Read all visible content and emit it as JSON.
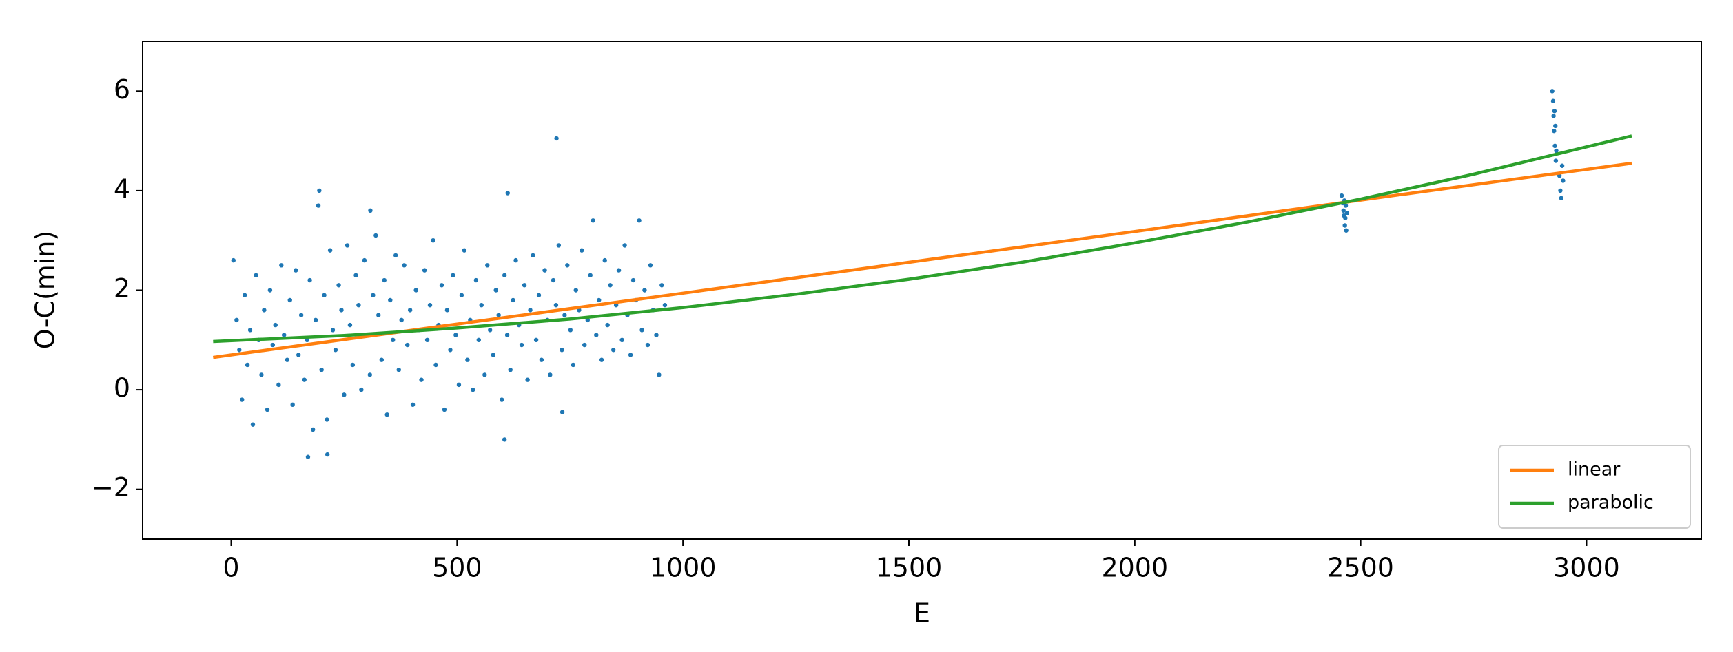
{
  "chart_data": {
    "type": "scatter",
    "xlabel": "E",
    "ylabel": "O-C(min)",
    "xlim": [
      -196,
      3254
    ],
    "ylim": [
      -3,
      7
    ],
    "xticks": [
      0,
      500,
      1000,
      1500,
      2000,
      2500,
      3000
    ],
    "yticks": [
      {
        "value": -2,
        "label": "−2"
      },
      0,
      2,
      4,
      6
    ],
    "grid": false,
    "legend": "lower right",
    "series": [
      {
        "type": "scatter",
        "color": "#1f77b4",
        "x": [
          5,
          12,
          18,
          24,
          30,
          36,
          42,
          48,
          55,
          61,
          67,
          73,
          80,
          86,
          92,
          98,
          105,
          111,
          117,
          124,
          130,
          136,
          143,
          149,
          155,
          162,
          168,
          174,
          181,
          187,
          193,
          200,
          206,
          212,
          219,
          225,
          231,
          238,
          244,
          250,
          257,
          263,
          269,
          276,
          282,
          288,
          295,
          301,
          307,
          314,
          320,
          326,
          333,
          339,
          345,
          352,
          358,
          364,
          371,
          377,
          383,
          390,
          396,
          402,
          409,
          415,
          421,
          428,
          434,
          440,
          447,
          453,
          459,
          466,
          472,
          478,
          485,
          491,
          497,
          504,
          510,
          516,
          523,
          529,
          535,
          542,
          548,
          554,
          561,
          567,
          573,
          580,
          586,
          592,
          599,
          605,
          611,
          618,
          624,
          630,
          637,
          643,
          649,
          656,
          662,
          668,
          675,
          681,
          687,
          694,
          700,
          706,
          713,
          719,
          725,
          732,
          738,
          744,
          751,
          757,
          763,
          770,
          776,
          782,
          789,
          795,
          801,
          808,
          814,
          820,
          827,
          833,
          839,
          846,
          852,
          858,
          865,
          871,
          877,
          884,
          890,
          896,
          903,
          909,
          915,
          922,
          928,
          934,
          941,
          947,
          953,
          960,
          170,
          195,
          213,
          308,
          605,
          720,
          612,
          733,
          2458,
          2460,
          2462,
          2463,
          2464,
          2465,
          2466,
          2467,
          2468,
          2470,
          2924,
          2926,
          2927,
          2928,
          2929,
          2930,
          2931,
          2932,
          2933,
          2940,
          2942,
          2944,
          2946,
          2948
        ],
        "values": [
          2.6,
          1.4,
          0.8,
          -0.2,
          1.9,
          0.5,
          1.2,
          -0.7,
          2.3,
          1.0,
          0.3,
          1.6,
          -0.4,
          2.0,
          0.9,
          1.3,
          0.1,
          2.5,
          1.1,
          0.6,
          1.8,
          -0.3,
          2.4,
          0.7,
          1.5,
          0.2,
          1.0,
          2.2,
          -0.8,
          1.4,
          3.7,
          0.4,
          1.9,
          -0.6,
          2.8,
          1.2,
          0.8,
          2.1,
          1.6,
          -0.1,
          2.9,
          1.3,
          0.5,
          2.3,
          1.7,
          0.0,
          2.6,
          1.1,
          0.3,
          1.9,
          3.1,
          1.5,
          0.6,
          2.2,
          -0.5,
          1.8,
          1.0,
          2.7,
          0.4,
          1.4,
          2.5,
          0.9,
          1.6,
          -0.3,
          2.0,
          1.2,
          0.2,
          2.4,
          1.0,
          1.7,
          3.0,
          0.5,
          1.3,
          2.1,
          -0.4,
          1.6,
          0.8,
          2.3,
          1.1,
          0.1,
          1.9,
          2.8,
          0.6,
          1.4,
          0.0,
          2.2,
          1.0,
          1.7,
          0.3,
          2.5,
          1.2,
          0.7,
          2.0,
          1.5,
          -0.2,
          2.3,
          1.1,
          0.4,
          1.8,
          2.6,
          1.3,
          0.9,
          2.1,
          0.2,
          1.6,
          2.7,
          1.0,
          1.9,
          0.6,
          2.4,
          1.4,
          0.3,
          2.2,
          1.7,
          2.9,
          0.8,
          1.5,
          2.5,
          1.2,
          0.5,
          2.0,
          1.6,
          2.8,
          0.9,
          1.4,
          2.3,
          3.4,
          1.1,
          1.8,
          0.6,
          2.6,
          1.3,
          2.1,
          0.8,
          1.7,
          2.4,
          1.0,
          2.9,
          1.5,
          0.7,
          2.2,
          1.8,
          3.4,
          1.2,
          2.0,
          0.9,
          2.5,
          1.6,
          1.1,
          0.3,
          2.1,
          1.7,
          -1.35,
          4.0,
          -1.3,
          3.6,
          -1.0,
          5.05,
          3.95,
          -0.45,
          3.9,
          3.75,
          3.6,
          3.5,
          3.8,
          3.3,
          3.45,
          3.7,
          3.2,
          3.55,
          6.0,
          5.8,
          5.5,
          5.2,
          5.6,
          4.9,
          5.3,
          4.6,
          4.8,
          4.3,
          4.0,
          3.85,
          4.5,
          4.2
        ]
      },
      {
        "type": "line",
        "name": "linear",
        "color": "#ff7f0e",
        "x": [
          -40,
          500,
          1000,
          1500,
          2000,
          2500,
          3100
        ],
        "values": [
          0.65,
          1.32,
          1.94,
          2.56,
          3.18,
          3.81,
          4.55
        ]
      },
      {
        "type": "line",
        "name": "parabolic",
        "color": "#2ca02c",
        "x": [
          -40,
          250,
          500,
          750,
          1000,
          1250,
          1500,
          1750,
          2000,
          2250,
          2500,
          2750,
          3100
        ],
        "values": [
          0.97,
          1.09,
          1.24,
          1.42,
          1.65,
          1.92,
          2.22,
          2.56,
          2.95,
          3.37,
          3.83,
          4.33,
          5.1
        ]
      }
    ]
  }
}
